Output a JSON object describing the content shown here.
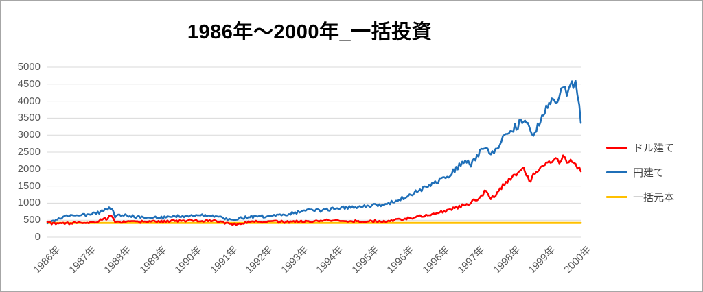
{
  "title": "1986年～2000年_一括投資",
  "colors": {
    "usd_series": "#ff0000",
    "yen_series": "#1f6fb8",
    "principal_series": "#ffc000",
    "gridline": "#d9d9d9",
    "axis_text": "#595959",
    "legend_text": "#404040",
    "border": "#a6a6a6"
  },
  "legend": {
    "items": [
      {
        "label": "ドル建て",
        "color": "#ff0000"
      },
      {
        "label": "円建て",
        "color": "#1f6fb8"
      },
      {
        "label": "一括元本",
        "color": "#ffc000"
      }
    ]
  },
  "chart_data": {
    "type": "line",
    "title": "1986年～2000年_一括投資",
    "xlabel": "",
    "ylabel": "",
    "ylim": [
      0,
      5000
    ],
    "y_ticks": [
      0,
      500,
      1000,
      1500,
      2000,
      2500,
      3000,
      3500,
      4000,
      4500,
      5000
    ],
    "x_tick_labels": [
      "1986年",
      "1987年",
      "1988年",
      "1989年",
      "1990年",
      "1991年",
      "1992年",
      "1993年",
      "1994年",
      "1995年",
      "1996年",
      "1996年",
      "1997年",
      "1998年",
      "1999年",
      "2000年"
    ],
    "x_range_years": [
      1986.0,
      2000.17
    ],
    "grid": "horizontal",
    "legend_position": "right",
    "series": [
      {
        "name": "円建て",
        "color": "#1f6fb8",
        "noisy": true,
        "points": [
          [
            1986.0,
            420
          ],
          [
            1986.15,
            460
          ],
          [
            1986.3,
            540
          ],
          [
            1986.5,
            620
          ],
          [
            1986.7,
            655
          ],
          [
            1986.9,
            640
          ],
          [
            1987.1,
            665
          ],
          [
            1987.3,
            705
          ],
          [
            1987.45,
            760
          ],
          [
            1987.6,
            830
          ],
          [
            1987.68,
            845
          ],
          [
            1987.75,
            790
          ],
          [
            1987.8,
            615
          ],
          [
            1987.95,
            655
          ],
          [
            1988.15,
            635
          ],
          [
            1988.35,
            600
          ],
          [
            1988.55,
            575
          ],
          [
            1988.75,
            590
          ],
          [
            1988.95,
            565
          ],
          [
            1989.15,
            580
          ],
          [
            1989.35,
            605
          ],
          [
            1989.55,
            625
          ],
          [
            1989.75,
            610
          ],
          [
            1989.95,
            645
          ],
          [
            1990.15,
            655
          ],
          [
            1990.35,
            635
          ],
          [
            1990.55,
            595
          ],
          [
            1990.75,
            525
          ],
          [
            1990.92,
            490
          ],
          [
            1991.1,
            545
          ],
          [
            1991.3,
            585
          ],
          [
            1991.5,
            605
          ],
          [
            1991.7,
            618
          ],
          [
            1991.9,
            608
          ],
          [
            1992.1,
            628
          ],
          [
            1992.3,
            658
          ],
          [
            1992.5,
            700
          ],
          [
            1992.7,
            742
          ],
          [
            1992.9,
            778
          ],
          [
            1993.1,
            800
          ],
          [
            1993.3,
            782
          ],
          [
            1993.5,
            818
          ],
          [
            1993.7,
            848
          ],
          [
            1993.9,
            868
          ],
          [
            1994.1,
            898
          ],
          [
            1994.3,
            868
          ],
          [
            1994.5,
            915
          ],
          [
            1994.7,
            948
          ],
          [
            1994.9,
            928
          ],
          [
            1995.1,
            1000
          ],
          [
            1995.3,
            1085
          ],
          [
            1995.5,
            1165
          ],
          [
            1995.7,
            1280
          ],
          [
            1995.9,
            1385
          ],
          [
            1996.1,
            1480
          ],
          [
            1996.3,
            1600
          ],
          [
            1996.5,
            1705
          ],
          [
            1996.7,
            1855
          ],
          [
            1996.9,
            2050
          ],
          [
            1997.1,
            2255
          ],
          [
            1997.25,
            2155
          ],
          [
            1997.45,
            2450
          ],
          [
            1997.65,
            2705
          ],
          [
            1997.78,
            2420
          ],
          [
            1997.95,
            2620
          ],
          [
            1998.1,
            2905
          ],
          [
            1998.3,
            3155
          ],
          [
            1998.5,
            3305
          ],
          [
            1998.65,
            3505
          ],
          [
            1998.8,
            3255
          ],
          [
            1998.95,
            3005
          ],
          [
            1999.1,
            3505
          ],
          [
            1999.25,
            3805
          ],
          [
            1999.4,
            4105
          ],
          [
            1999.5,
            3905
          ],
          [
            1999.6,
            4255
          ],
          [
            1999.7,
            4500
          ],
          [
            1999.8,
            4305
          ],
          [
            1999.9,
            4555
          ],
          [
            1999.97,
            4350
          ],
          [
            2000.03,
            4450
          ],
          [
            2000.08,
            4100
          ],
          [
            2000.13,
            3750
          ],
          [
            2000.17,
            3360
          ]
        ]
      },
      {
        "name": "ドル建て",
        "color": "#ff0000",
        "noisy": true,
        "points": [
          [
            1986.0,
            420
          ],
          [
            1986.15,
            400
          ],
          [
            1986.3,
            390
          ],
          [
            1986.5,
            405
          ],
          [
            1986.7,
            420
          ],
          [
            1986.9,
            412
          ],
          [
            1987.1,
            435
          ],
          [
            1987.3,
            465
          ],
          [
            1987.45,
            505
          ],
          [
            1987.6,
            565
          ],
          [
            1987.68,
            615
          ],
          [
            1987.75,
            575
          ],
          [
            1987.8,
            425
          ],
          [
            1987.95,
            448
          ],
          [
            1988.15,
            440
          ],
          [
            1988.35,
            446
          ],
          [
            1988.55,
            452
          ],
          [
            1988.75,
            456
          ],
          [
            1988.95,
            450
          ],
          [
            1989.15,
            462
          ],
          [
            1989.35,
            476
          ],
          [
            1989.55,
            490
          ],
          [
            1989.75,
            482
          ],
          [
            1989.95,
            500
          ],
          [
            1990.15,
            490
          ],
          [
            1990.35,
            480
          ],
          [
            1990.55,
            450
          ],
          [
            1990.75,
            402
          ],
          [
            1990.92,
            372
          ],
          [
            1991.1,
            412
          ],
          [
            1991.3,
            440
          ],
          [
            1991.5,
            450
          ],
          [
            1991.7,
            455
          ],
          [
            1991.9,
            450
          ],
          [
            1992.1,
            456
          ],
          [
            1992.3,
            450
          ],
          [
            1992.5,
            456
          ],
          [
            1992.7,
            461
          ],
          [
            1992.9,
            466
          ],
          [
            1993.1,
            470
          ],
          [
            1993.3,
            476
          ],
          [
            1993.5,
            518
          ],
          [
            1993.7,
            492
          ],
          [
            1993.9,
            481
          ],
          [
            1994.1,
            476
          ],
          [
            1994.3,
            462
          ],
          [
            1994.5,
            466
          ],
          [
            1994.7,
            471
          ],
          [
            1994.9,
            462
          ],
          [
            1995.1,
            481
          ],
          [
            1995.3,
            512
          ],
          [
            1995.5,
            546
          ],
          [
            1995.7,
            582
          ],
          [
            1995.9,
            622
          ],
          [
            1996.1,
            662
          ],
          [
            1996.3,
            700
          ],
          [
            1996.5,
            742
          ],
          [
            1996.7,
            802
          ],
          [
            1996.9,
            882
          ],
          [
            1997.1,
            962
          ],
          [
            1997.25,
            1022
          ],
          [
            1997.45,
            1152
          ],
          [
            1997.65,
            1352
          ],
          [
            1997.78,
            1155
          ],
          [
            1997.95,
            1305
          ],
          [
            1998.1,
            1505
          ],
          [
            1998.3,
            1705
          ],
          [
            1998.5,
            1855
          ],
          [
            1998.65,
            2055
          ],
          [
            1998.8,
            1605
          ],
          [
            1998.95,
            1905
          ],
          [
            1999.1,
            2105
          ],
          [
            1999.25,
            2205
          ],
          [
            1999.4,
            2150
          ],
          [
            1999.5,
            2305
          ],
          [
            1999.6,
            2205
          ],
          [
            1999.7,
            2355
          ],
          [
            1999.8,
            2255
          ],
          [
            1999.9,
            2305
          ],
          [
            1999.97,
            2250
          ],
          [
            2000.03,
            2180
          ],
          [
            2000.08,
            2100
          ],
          [
            2000.13,
            2000
          ],
          [
            2000.17,
            1935
          ]
        ]
      },
      {
        "name": "一括元本",
        "color": "#ffc000",
        "noisy": false,
        "points": [
          [
            1986.0,
            420
          ],
          [
            2000.17,
            420
          ]
        ]
      }
    ]
  }
}
